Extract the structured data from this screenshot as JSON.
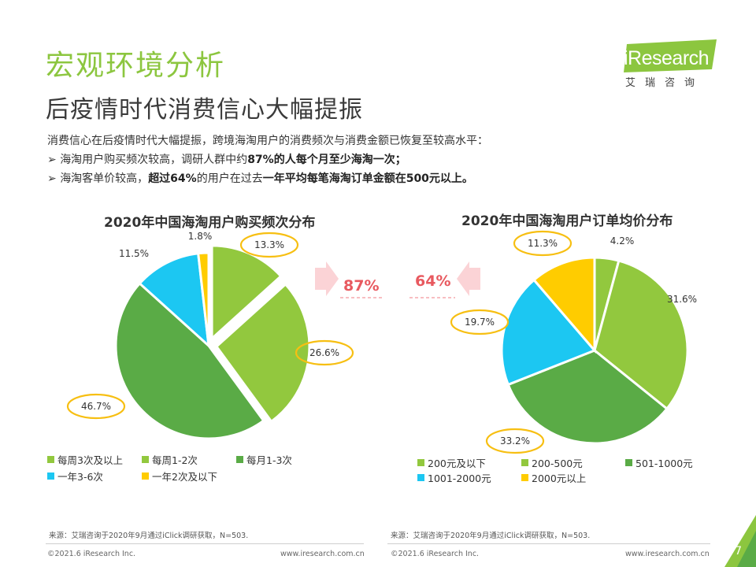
{
  "title": "宏观环境分析",
  "subtitle": "后疫情时代消费信心大幅提振",
  "logo": {
    "text": "iResearch",
    "cn": "艾瑞咨询"
  },
  "intro": {
    "line1": "消费信心在后疫情时代大幅提振，跨境海淘用户的消费频次与消费金额已恢复至较高水平：",
    "bullet_mark": "➢",
    "line2_a": "海淘用户购买频次较高，调研人群中约",
    "line2_b": "87%的人每个月至少海淘一次；",
    "line3_a": "海淘客单价较高，",
    "line3_b": "超过64%",
    "line3_c": "的用户在过去",
    "line3_d": "一年平均每笔海淘订单金额在500元以上。"
  },
  "callouts": {
    "left": "87%",
    "right": "64%"
  },
  "colors": {
    "green_light": "#92c83e",
    "green_dark": "#5aab46",
    "blue": "#1cc7f2",
    "yellow": "#ffcc00",
    "accent": "#8cc63f",
    "callout": "#e8595f",
    "highlight": "#f7bf12"
  },
  "chart_data": [
    {
      "type": "pie",
      "title": "2020年中国海淘用户购买频次分布",
      "slices": [
        {
          "label": "每周3次及以上",
          "value": 13.3,
          "display": "13.3%",
          "color": "#92c83e"
        },
        {
          "label": "每周1-2次",
          "value": 26.6,
          "display": "26.6%",
          "color": "#92c83e"
        },
        {
          "label": "每月1-3次",
          "value": 46.7,
          "display": "46.7%",
          "color": "#5aab46"
        },
        {
          "label": "一年3-6次",
          "value": 11.5,
          "display": "11.5%",
          "color": "#1cc7f2"
        },
        {
          "label": "一年2次及以下",
          "value": 1.8,
          "display": "1.8%",
          "color": "#ffcc00"
        }
      ],
      "legend": [
        {
          "label": "每周3次及以上",
          "color": "#92c83e"
        },
        {
          "label": "每周1-2次",
          "color": "#92c83e"
        },
        {
          "label": "每月1-3次",
          "color": "#5aab46"
        },
        {
          "label": "一年3-6次",
          "color": "#1cc7f2"
        },
        {
          "label": "一年2次及以下",
          "color": "#ffcc00"
        }
      ],
      "highlighted": [
        "13.3%",
        "26.6%",
        "46.7%"
      ]
    },
    {
      "type": "pie",
      "title": "2020年中国海淘用户订单均价分布",
      "slices": [
        {
          "label": "200元及以下",
          "value": 4.2,
          "display": "4.2%",
          "color": "#92c83e"
        },
        {
          "label": "200-500元",
          "value": 31.6,
          "display": "31.6%",
          "color": "#92c83e"
        },
        {
          "label": "501-1000元",
          "value": 33.2,
          "display": "33.2%",
          "color": "#5aab46"
        },
        {
          "label": "1001-2000元",
          "value": 19.7,
          "display": "19.7%",
          "color": "#1cc7f2"
        },
        {
          "label": "2000元以上",
          "value": 11.3,
          "display": "11.3%",
          "color": "#ffcc00"
        }
      ],
      "legend": [
        {
          "label": "200元及以下",
          "color": "#92c83e"
        },
        {
          "label": "200-500元",
          "color": "#92c83e"
        },
        {
          "label": "501-1000元",
          "color": "#5aab46"
        },
        {
          "label": "1001-2000元",
          "color": "#1cc7f2"
        },
        {
          "label": "2000元以上",
          "color": "#ffcc00"
        }
      ],
      "highlighted": [
        "33.2%",
        "19.7%",
        "11.3%"
      ]
    }
  ],
  "source": {
    "left": "来源：艾瑞咨询于2020年9月通过iClick调研获取，N=503.",
    "right": "来源：艾瑞咨询于2020年9月通过iClick调研获取，N=503."
  },
  "footer": {
    "copyright_left": "©2021.6 iResearch Inc.",
    "site_left": "www.iresearch.com.cn",
    "copyright_right": "©2021.6 iResearch Inc.",
    "site_right": "www.iresearch.com.cn",
    "page": "7"
  }
}
